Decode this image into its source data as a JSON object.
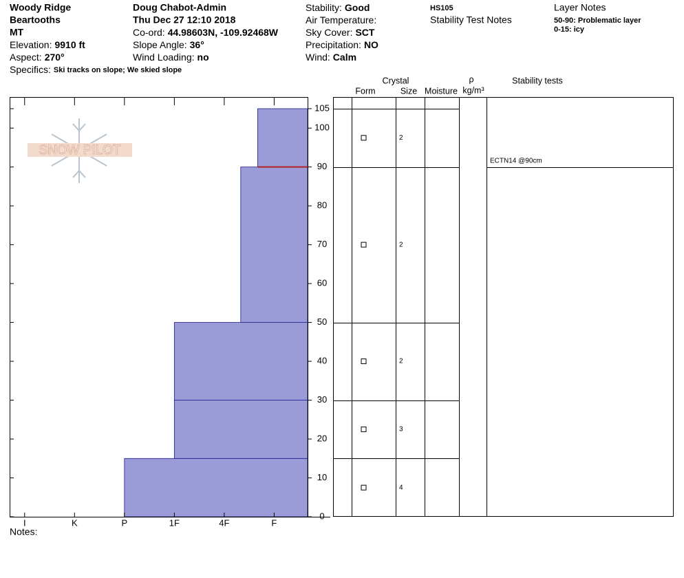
{
  "header": {
    "columns": [
      [
        {
          "text": "Woody Ridge",
          "bold": true
        },
        {
          "text": "Beartooths",
          "bold": true
        },
        {
          "text": "MT",
          "bold": true
        },
        {
          "label": "Elevation:",
          "value": "9910 ft"
        },
        {
          "label": "Aspect:",
          "value": "270°"
        },
        {
          "label": "Specifics:",
          "value": "Ski tracks on slope; We skied slope",
          "small": true
        }
      ],
      [
        {
          "text": "Doug Chabot-Admin",
          "bold": true
        },
        {
          "text": "Thu Dec 27 12:10 2018",
          "bold": true
        },
        {
          "label": "Co-ord:",
          "value": "44.98603N, -109.92468W"
        },
        {
          "label": "Slope Angle:",
          "value": "36°"
        },
        {
          "label": "Wind Loading:",
          "value": "no"
        }
      ],
      [
        {
          "label": "Stability:",
          "value": "Good"
        },
        {
          "label": "Air Temperature:"
        },
        {
          "label": "Sky Cover:",
          "value": "SCT"
        },
        {
          "label": "Precipitation:",
          "value": "NO"
        },
        {
          "label": "Wind:",
          "value": "Calm"
        }
      ],
      [
        {
          "text": "HS105",
          "bold": true,
          "small": true
        },
        {
          "text": "Stability Test Notes"
        }
      ],
      [
        {
          "text": "Layer Notes"
        },
        {
          "text": "50-90: Problematic layer",
          "bold": true,
          "small": true
        },
        {
          "text": "0-15: icy",
          "bold": true,
          "small": true
        }
      ]
    ]
  },
  "logo": "SNOW PILOT",
  "table": {
    "crystal": "Crystal",
    "form": "Form",
    "size": "Size",
    "moisture": "Moisture",
    "density_symbol": "ρ",
    "density_unit": "kg/m³",
    "tests": "Stability tests"
  },
  "notes_label": "Notes:",
  "chart_data": {
    "type": "snow-profile",
    "xlim": [
      6.3,
      0.33
    ],
    "xticks": [
      {
        "value": 6,
        "label": "I"
      },
      {
        "value": 5,
        "label": "K"
      },
      {
        "value": 4,
        "label": "P"
      },
      {
        "value": 3,
        "label": "1F"
      },
      {
        "value": 2,
        "label": "4F"
      },
      {
        "value": 1,
        "label": "F"
      }
    ],
    "ylim": [
      0,
      108
    ],
    "yticks": [
      0,
      10,
      20,
      30,
      40,
      50,
      60,
      70,
      80,
      90,
      100,
      105
    ],
    "color": "#9b9bd7",
    "layers": [
      {
        "bottom": 0,
        "top": 15,
        "hardness": 4,
        "size": 4
      },
      {
        "bottom": 15,
        "top": 30,
        "hardness": 3,
        "size": 3
      },
      {
        "bottom": 30,
        "top": 50,
        "hardness": 3,
        "size": 2
      },
      {
        "bottom": 50,
        "top": 90,
        "hardness": 1.67,
        "size": 2
      },
      {
        "bottom": 90,
        "top": 105,
        "hardness": 1.33,
        "size": 2
      }
    ],
    "tests": [
      {
        "depth": 90,
        "label": "ECTN14 @90cm",
        "color": "#b22222"
      }
    ]
  }
}
